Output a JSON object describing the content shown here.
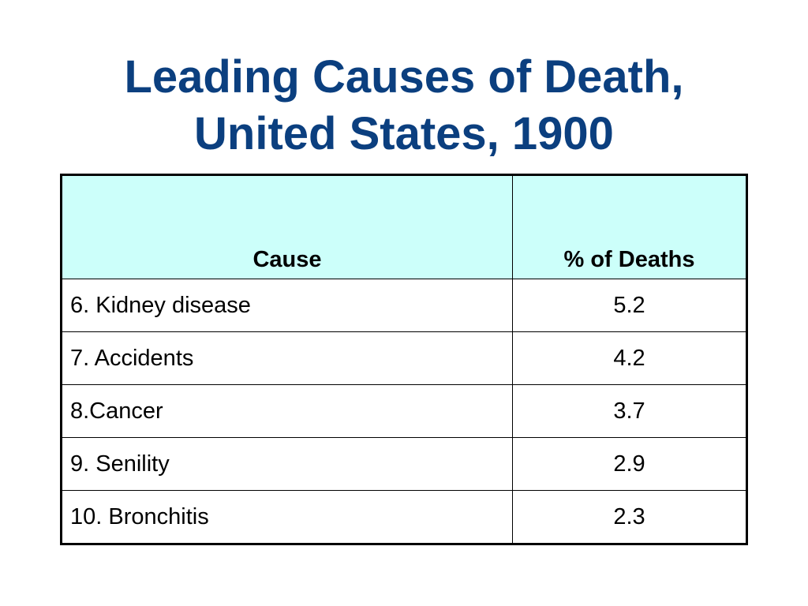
{
  "title": {
    "line1": "Leading Causes of Death,",
    "line2": "United States, 1900"
  },
  "table": {
    "headers": [
      "Cause",
      "% of Deaths"
    ],
    "rows": [
      {
        "cause": "6. Kidney disease",
        "percent": "5.2"
      },
      {
        "cause": "7. Accidents",
        "percent": "4.2"
      },
      {
        "cause": "8.Cancer",
        "percent": "3.7"
      },
      {
        "cause": "9. Senility",
        "percent": "2.9"
      },
      {
        "cause": "10. Bronchitis",
        "percent": "2.3"
      }
    ]
  },
  "colors": {
    "title": "#0b3f7f",
    "header_bg": "#ccfffa",
    "border": "#000000"
  }
}
